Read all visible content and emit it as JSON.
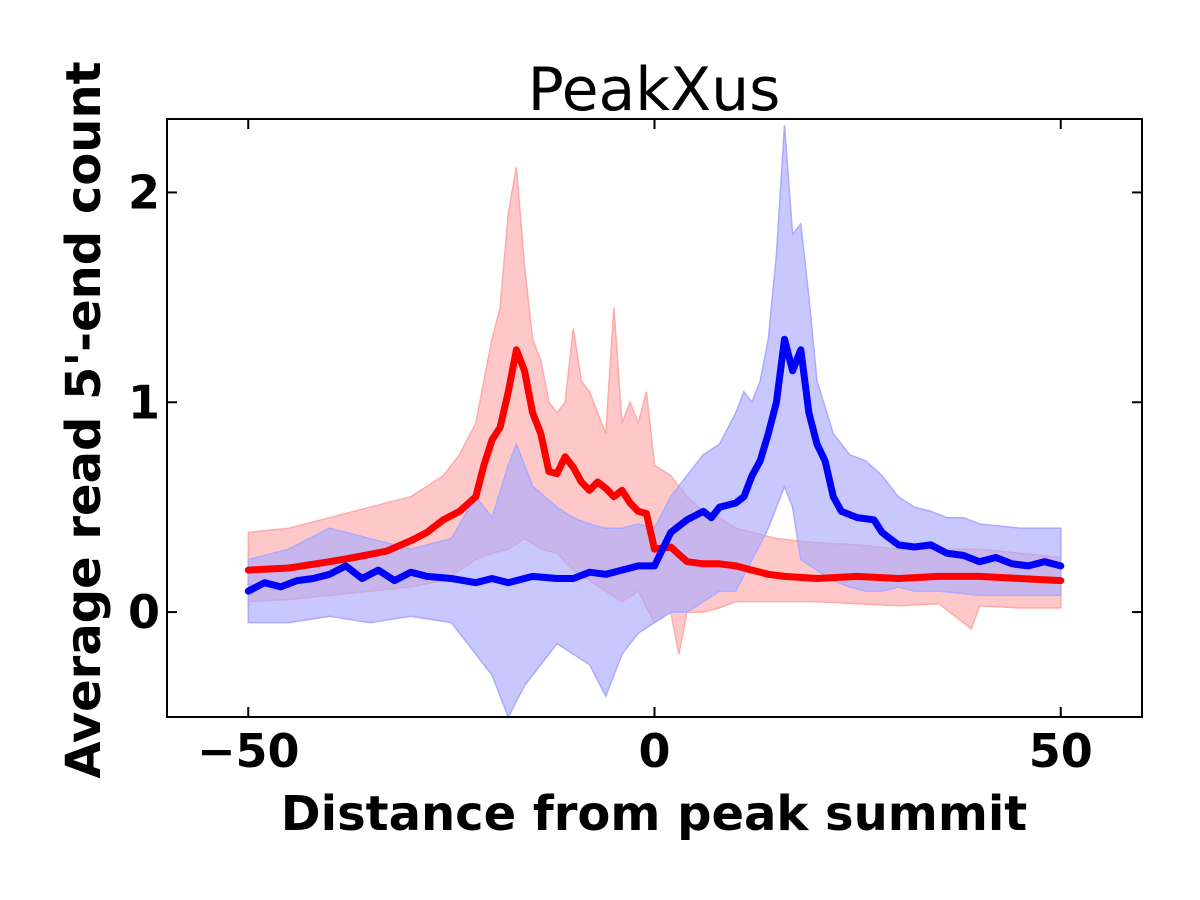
{
  "chart_data": {
    "type": "line",
    "title": "PeakXus",
    "xlabel": "Distance from peak summit",
    "ylabel": "Average read 5'-end count",
    "xlim": [
      -60,
      60
    ],
    "ylim": [
      -0.5,
      2.35
    ],
    "xticks": [
      -50,
      0,
      50
    ],
    "xtick_labels": [
      "−50",
      "0",
      "50"
    ],
    "yticks": [
      0,
      1,
      2
    ],
    "ytick_labels": [
      "0",
      "1",
      "2"
    ],
    "grid": false,
    "legend": "none",
    "series": [
      {
        "color": "#ff0000",
        "band_color": "#ffaaaa",
        "points": [
          [
            -50,
            0.2
          ],
          [
            -45,
            0.21
          ],
          [
            -40,
            0.24
          ],
          [
            -37,
            0.26
          ],
          [
            -33,
            0.29
          ],
          [
            -30,
            0.34
          ],
          [
            -28,
            0.38
          ],
          [
            -26,
            0.44
          ],
          [
            -24,
            0.48
          ],
          [
            -22,
            0.55
          ],
          [
            -21,
            0.7
          ],
          [
            -20,
            0.82
          ],
          [
            -19,
            0.88
          ],
          [
            -18,
            1.05
          ],
          [
            -17,
            1.25
          ],
          [
            -16,
            1.15
          ],
          [
            -15,
            0.95
          ],
          [
            -14,
            0.85
          ],
          [
            -13,
            0.67
          ],
          [
            -12,
            0.66
          ],
          [
            -11,
            0.74
          ],
          [
            -10,
            0.69
          ],
          [
            -9,
            0.62
          ],
          [
            -8,
            0.58
          ],
          [
            -7,
            0.62
          ],
          [
            -6,
            0.59
          ],
          [
            -5,
            0.55
          ],
          [
            -4,
            0.58
          ],
          [
            -3,
            0.52
          ],
          [
            -2,
            0.48
          ],
          [
            -1,
            0.47
          ],
          [
            0,
            0.3
          ],
          [
            2,
            0.31
          ],
          [
            4,
            0.24
          ],
          [
            6,
            0.23
          ],
          [
            8,
            0.23
          ],
          [
            10,
            0.22
          ],
          [
            12,
            0.2
          ],
          [
            14,
            0.18
          ],
          [
            16,
            0.17
          ],
          [
            20,
            0.16
          ],
          [
            25,
            0.17
          ],
          [
            30,
            0.16
          ],
          [
            35,
            0.17
          ],
          [
            40,
            0.17
          ],
          [
            45,
            0.16
          ],
          [
            50,
            0.15
          ]
        ],
        "band_upper": [
          [
            -50,
            0.38
          ],
          [
            -45,
            0.4
          ],
          [
            -40,
            0.45
          ],
          [
            -35,
            0.5
          ],
          [
            -30,
            0.55
          ],
          [
            -26,
            0.65
          ],
          [
            -24,
            0.75
          ],
          [
            -22,
            0.9
          ],
          [
            -20,
            1.3
          ],
          [
            -19,
            1.45
          ],
          [
            -18,
            1.9
          ],
          [
            -17,
            2.12
          ],
          [
            -16,
            1.65
          ],
          [
            -15,
            1.3
          ],
          [
            -14,
            1.2
          ],
          [
            -13,
            1.0
          ],
          [
            -12,
            0.95
          ],
          [
            -11,
            1.0
          ],
          [
            -10,
            1.35
          ],
          [
            -9,
            1.1
          ],
          [
            -8,
            1.05
          ],
          [
            -7,
            0.95
          ],
          [
            -6,
            0.85
          ],
          [
            -5,
            1.45
          ],
          [
            -4,
            0.9
          ],
          [
            -3,
            1.0
          ],
          [
            -2,
            0.9
          ],
          [
            -1,
            1.05
          ],
          [
            0,
            0.7
          ],
          [
            2,
            0.65
          ],
          [
            4,
            0.55
          ],
          [
            6,
            0.48
          ],
          [
            8,
            0.45
          ],
          [
            10,
            0.4
          ],
          [
            15,
            0.35
          ],
          [
            20,
            0.33
          ],
          [
            25,
            0.32
          ],
          [
            30,
            0.3
          ],
          [
            35,
            0.3
          ],
          [
            40,
            0.3
          ],
          [
            45,
            0.28
          ],
          [
            50,
            0.26
          ]
        ],
        "band_lower": [
          [
            -50,
            0.05
          ],
          [
            -45,
            0.06
          ],
          [
            -40,
            0.08
          ],
          [
            -35,
            0.1
          ],
          [
            -30,
            0.12
          ],
          [
            -26,
            0.15
          ],
          [
            -24,
            0.2
          ],
          [
            -22,
            0.25
          ],
          [
            -20,
            0.28
          ],
          [
            -18,
            0.3
          ],
          [
            -16,
            0.35
          ],
          [
            -14,
            0.3
          ],
          [
            -12,
            0.28
          ],
          [
            -10,
            0.2
          ],
          [
            -8,
            0.15
          ],
          [
            -6,
            0.1
          ],
          [
            -4,
            0.05
          ],
          [
            -2,
            0.1
          ],
          [
            0,
            -0.05
          ],
          [
            2,
            0.0
          ],
          [
            3,
            -0.2
          ],
          [
            4,
            0.0
          ],
          [
            6,
            0.0
          ],
          [
            8,
            0.02
          ],
          [
            10,
            0.05
          ],
          [
            15,
            0.05
          ],
          [
            20,
            0.05
          ],
          [
            25,
            0.04
          ],
          [
            30,
            0.03
          ],
          [
            35,
            0.04
          ],
          [
            39,
            -0.08
          ],
          [
            40,
            0.03
          ],
          [
            45,
            0.02
          ],
          [
            50,
            0.02
          ]
        ]
      },
      {
        "color": "#0000ff",
        "band_color": "#aaaaff",
        "points": [
          [
            -50,
            0.1
          ],
          [
            -48,
            0.14
          ],
          [
            -46,
            0.12
          ],
          [
            -44,
            0.15
          ],
          [
            -42,
            0.16
          ],
          [
            -40,
            0.18
          ],
          [
            -38,
            0.22
          ],
          [
            -36,
            0.16
          ],
          [
            -34,
            0.2
          ],
          [
            -32,
            0.15
          ],
          [
            -30,
            0.19
          ],
          [
            -28,
            0.17
          ],
          [
            -25,
            0.16
          ],
          [
            -22,
            0.14
          ],
          [
            -20,
            0.16
          ],
          [
            -18,
            0.14
          ],
          [
            -15,
            0.17
          ],
          [
            -12,
            0.16
          ],
          [
            -10,
            0.16
          ],
          [
            -8,
            0.19
          ],
          [
            -6,
            0.18
          ],
          [
            -4,
            0.2
          ],
          [
            -2,
            0.22
          ],
          [
            0,
            0.22
          ],
          [
            1,
            0.3
          ],
          [
            2,
            0.38
          ],
          [
            4,
            0.44
          ],
          [
            6,
            0.48
          ],
          [
            7,
            0.45
          ],
          [
            8,
            0.5
          ],
          [
            10,
            0.52
          ],
          [
            11,
            0.55
          ],
          [
            12,
            0.65
          ],
          [
            13,
            0.72
          ],
          [
            14,
            0.85
          ],
          [
            15,
            1.0
          ],
          [
            16,
            1.3
          ],
          [
            17,
            1.15
          ],
          [
            18,
            1.25
          ],
          [
            19,
            0.95
          ],
          [
            20,
            0.8
          ],
          [
            21,
            0.72
          ],
          [
            22,
            0.55
          ],
          [
            23,
            0.48
          ],
          [
            25,
            0.45
          ],
          [
            27,
            0.44
          ],
          [
            28,
            0.38
          ],
          [
            30,
            0.32
          ],
          [
            32,
            0.31
          ],
          [
            34,
            0.32
          ],
          [
            36,
            0.28
          ],
          [
            38,
            0.27
          ],
          [
            40,
            0.24
          ],
          [
            42,
            0.26
          ],
          [
            44,
            0.23
          ],
          [
            46,
            0.22
          ],
          [
            48,
            0.24
          ],
          [
            50,
            0.22
          ]
        ],
        "band_upper": [
          [
            -50,
            0.25
          ],
          [
            -45,
            0.3
          ],
          [
            -40,
            0.4
          ],
          [
            -35,
            0.35
          ],
          [
            -30,
            0.3
          ],
          [
            -25,
            0.35
          ],
          [
            -22,
            0.55
          ],
          [
            -20,
            0.45
          ],
          [
            -18,
            0.7
          ],
          [
            -17,
            0.8
          ],
          [
            -15,
            0.6
          ],
          [
            -12,
            0.5
          ],
          [
            -10,
            0.45
          ],
          [
            -8,
            0.42
          ],
          [
            -6,
            0.4
          ],
          [
            -4,
            0.4
          ],
          [
            -2,
            0.42
          ],
          [
            0,
            0.4
          ],
          [
            2,
            0.55
          ],
          [
            4,
            0.65
          ],
          [
            6,
            0.75
          ],
          [
            8,
            0.8
          ],
          [
            10,
            0.95
          ],
          [
            11,
            1.05
          ],
          [
            12,
            1.0
          ],
          [
            13,
            1.1
          ],
          [
            14,
            1.3
          ],
          [
            15,
            1.7
          ],
          [
            16,
            2.32
          ],
          [
            17,
            1.8
          ],
          [
            18,
            1.85
          ],
          [
            19,
            1.5
          ],
          [
            20,
            1.1
          ],
          [
            22,
            0.85
          ],
          [
            24,
            0.75
          ],
          [
            26,
            0.72
          ],
          [
            28,
            0.65
          ],
          [
            30,
            0.55
          ],
          [
            32,
            0.5
          ],
          [
            34,
            0.48
          ],
          [
            36,
            0.45
          ],
          [
            38,
            0.45
          ],
          [
            40,
            0.42
          ],
          [
            45,
            0.4
          ],
          [
            50,
            0.4
          ]
        ],
        "band_lower": [
          [
            -50,
            -0.05
          ],
          [
            -45,
            -0.05
          ],
          [
            -40,
            -0.02
          ],
          [
            -35,
            -0.05
          ],
          [
            -30,
            -0.02
          ],
          [
            -25,
            -0.05
          ],
          [
            -22,
            -0.2
          ],
          [
            -20,
            -0.3
          ],
          [
            -18,
            -0.5
          ],
          [
            -16,
            -0.35
          ],
          [
            -14,
            -0.25
          ],
          [
            -12,
            -0.15
          ],
          [
            -10,
            -0.2
          ],
          [
            -8,
            -0.25
          ],
          [
            -6,
            -0.4
          ],
          [
            -4,
            -0.2
          ],
          [
            -2,
            -0.1
          ],
          [
            0,
            -0.05
          ],
          [
            2,
            0.0
          ],
          [
            4,
            0.0
          ],
          [
            6,
            0.05
          ],
          [
            8,
            0.1
          ],
          [
            10,
            0.1
          ],
          [
            12,
            0.25
          ],
          [
            14,
            0.4
          ],
          [
            16,
            0.6
          ],
          [
            17,
            0.5
          ],
          [
            18,
            0.25
          ],
          [
            20,
            0.2
          ],
          [
            22,
            0.15
          ],
          [
            24,
            0.12
          ],
          [
            26,
            0.1
          ],
          [
            28,
            0.1
          ],
          [
            30,
            0.12
          ],
          [
            32,
            0.1
          ],
          [
            35,
            0.1
          ],
          [
            40,
            0.08
          ],
          [
            45,
            0.08
          ],
          [
            50,
            0.08
          ]
        ]
      }
    ]
  }
}
